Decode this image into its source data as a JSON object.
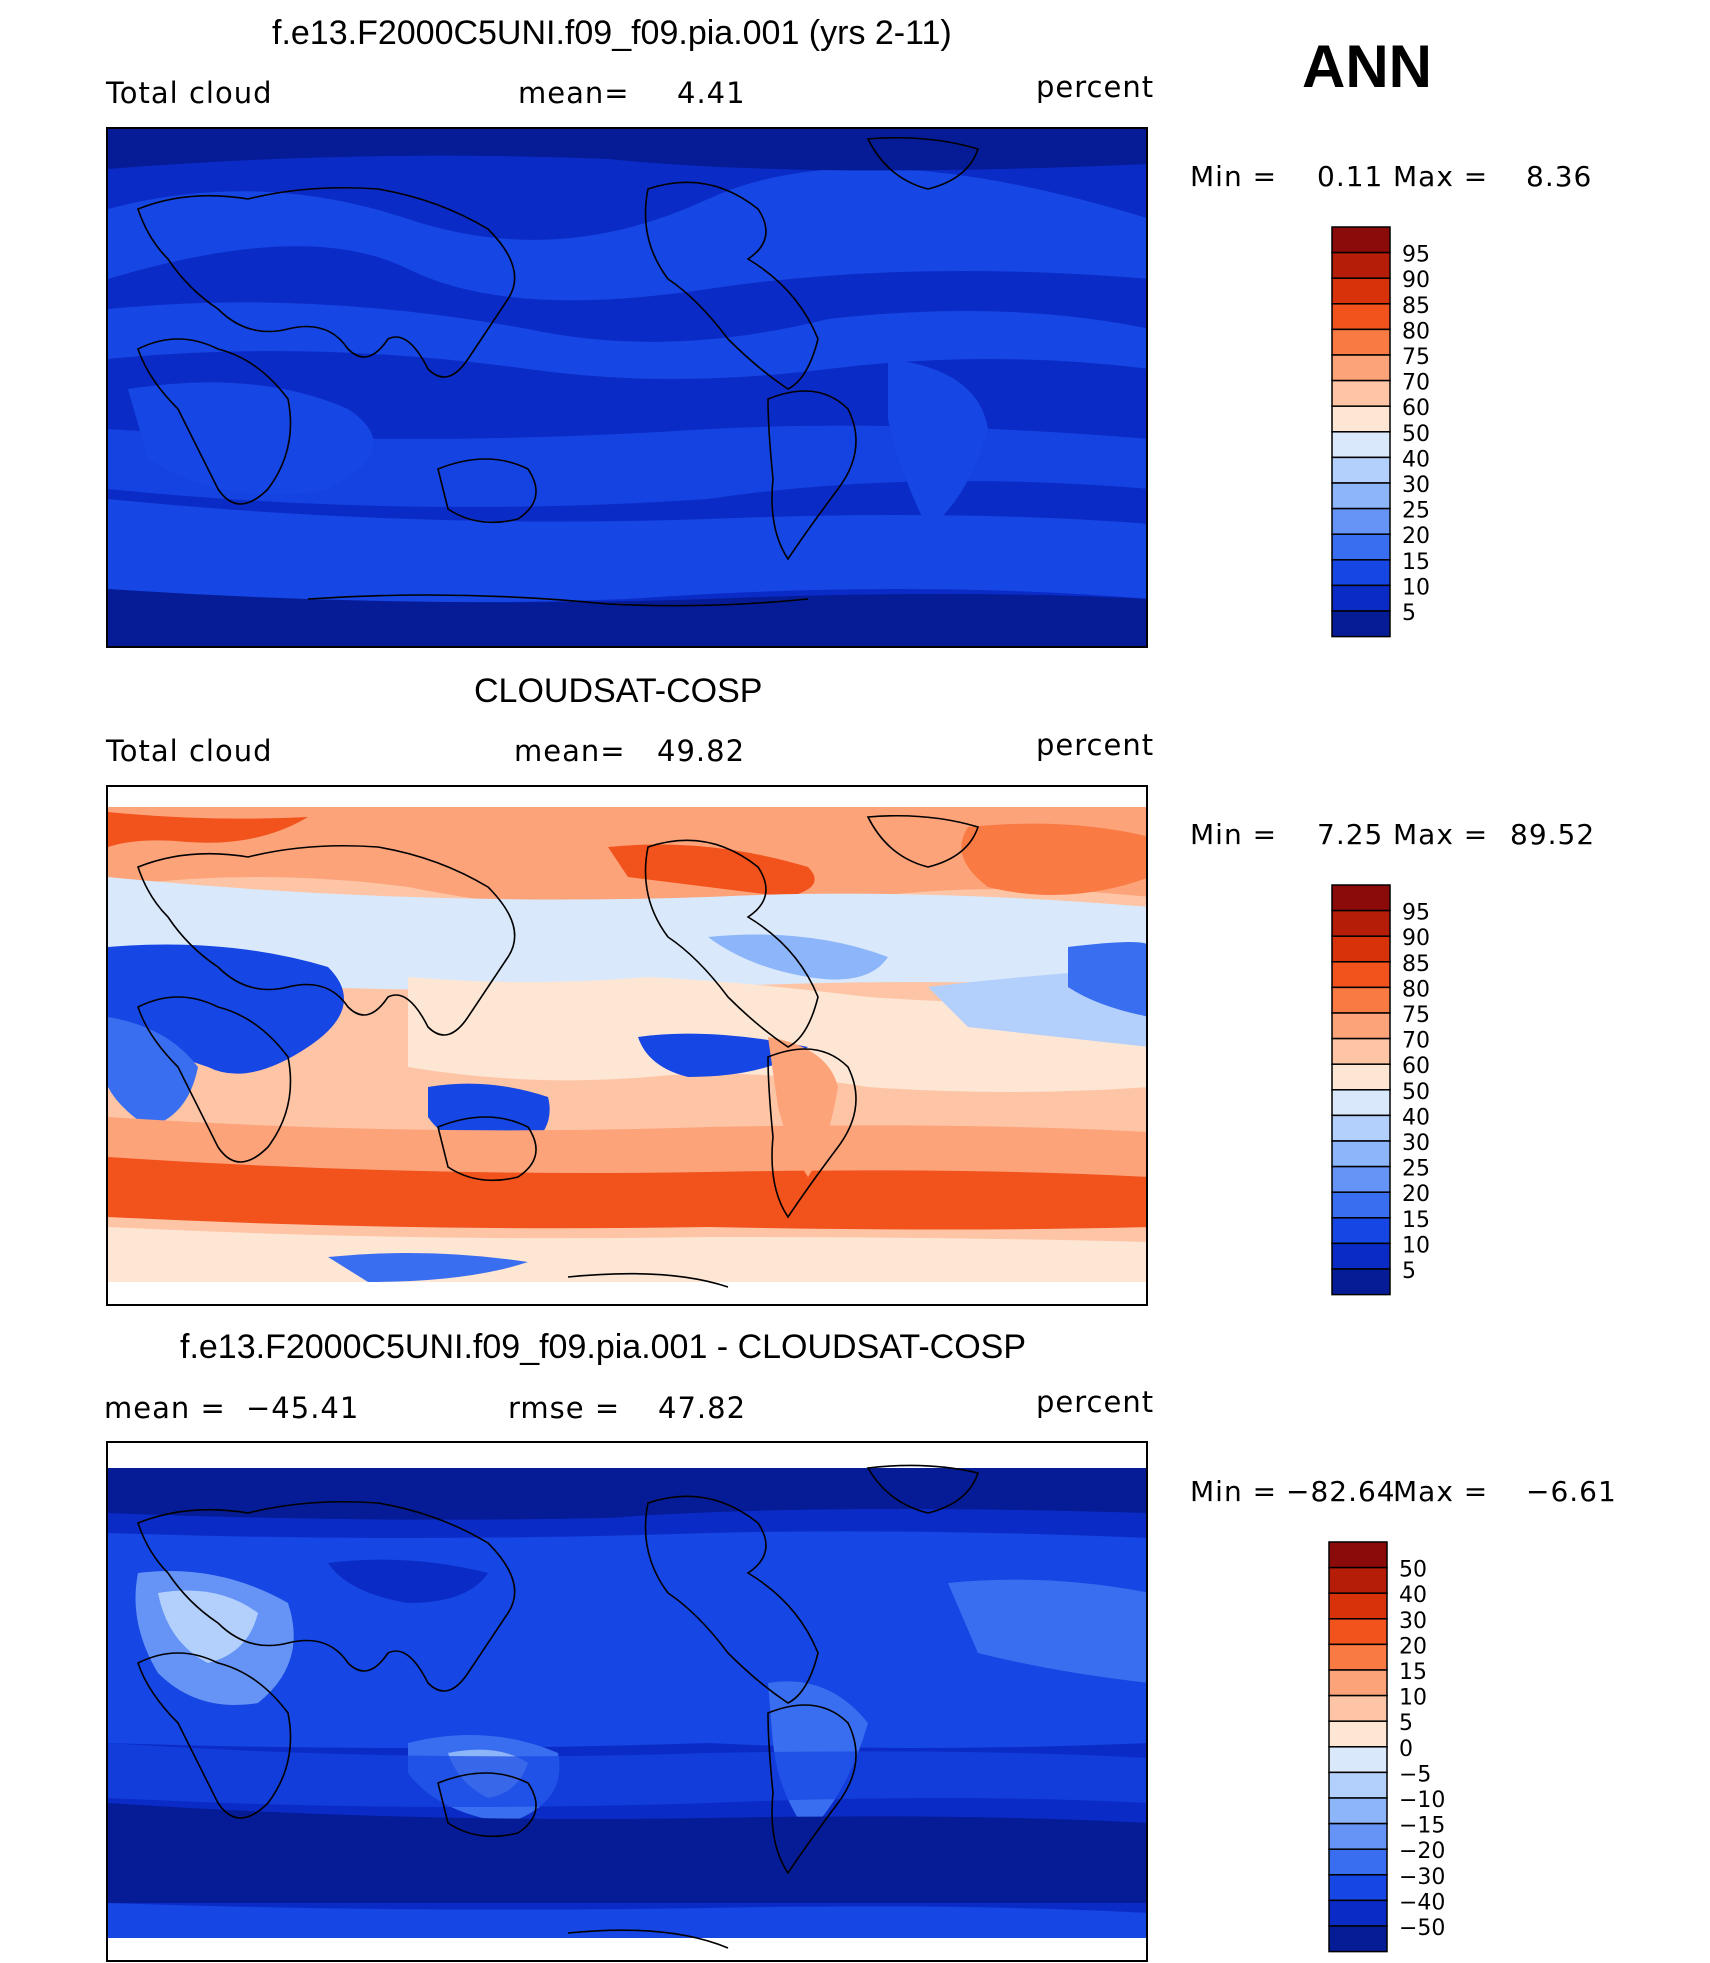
{
  "season_label": "ANN",
  "chart_data": [
    {
      "type": "heatmap",
      "title": "f.e13.F2000C5UNI.f09_f09.pia.001 (yrs 2-11)",
      "variable": "Total cloud",
      "mean_label": "mean=",
      "mean_value": "4.41",
      "units": "percent",
      "min_label": "Min =",
      "min_value": "0.11",
      "max_label": "Max =",
      "max_value": "8.36",
      "colorbar_levels": [
        "95",
        "90",
        "85",
        "80",
        "75",
        "70",
        "60",
        "50",
        "40",
        "30",
        "25",
        "20",
        "15",
        "10",
        "5"
      ],
      "colorbar_colors": [
        "#8b0a0a",
        "#b51d08",
        "#d8320a",
        "#f2521c",
        "#fa7a44",
        "#fca37a",
        "#fdc5a6",
        "#fde6d4",
        "#d9e9fb",
        "#b3cffb",
        "#8db5fa",
        "#6694f6",
        "#3a6ef0",
        "#1646e3",
        "#0b2bc6",
        "#051c96"
      ]
    },
    {
      "type": "heatmap",
      "title": "CLOUDSAT-COSP",
      "variable": "Total cloud",
      "mean_label": "mean=",
      "mean_value": "49.82",
      "units": "percent",
      "min_label": "Min =",
      "min_value": "7.25",
      "max_label": "Max =",
      "max_value": "89.52",
      "colorbar_levels": [
        "95",
        "90",
        "85",
        "80",
        "75",
        "70",
        "60",
        "50",
        "40",
        "30",
        "25",
        "20",
        "15",
        "10",
        "5"
      ],
      "colorbar_colors": [
        "#8b0a0a",
        "#b51d08",
        "#d8320a",
        "#f2521c",
        "#fa7a44",
        "#fca37a",
        "#fdc5a6",
        "#fde6d4",
        "#d9e9fb",
        "#b3cffb",
        "#8db5fa",
        "#6694f6",
        "#3a6ef0",
        "#1646e3",
        "#0b2bc6",
        "#051c96"
      ]
    },
    {
      "type": "heatmap",
      "title": "f.e13.F2000C5UNI.f09_f09.pia.001 - CLOUDSAT-COSP",
      "mean_label": "mean =",
      "mean_value": "−45.41",
      "rmse_label": "rmse =",
      "rmse_value": "47.82",
      "units": "percent",
      "min_label": "Min =",
      "min_value": "−82.64",
      "max_label": "Max =",
      "max_value": "−6.61",
      "colorbar_levels": [
        "50",
        "40",
        "30",
        "20",
        "15",
        "10",
        "5",
        "0",
        "−5",
        "−10",
        "−15",
        "−20",
        "−30",
        "−40",
        "−50"
      ],
      "colorbar_colors": [
        "#8b0a0a",
        "#b51d08",
        "#d8320a",
        "#f2521c",
        "#fa7a44",
        "#fca37a",
        "#fdc5a6",
        "#fde6d4",
        "#d9e9fb",
        "#b3cffb",
        "#8db5fa",
        "#6694f6",
        "#3a6ef0",
        "#1646e3",
        "#0b2bc6",
        "#051c96"
      ]
    }
  ]
}
